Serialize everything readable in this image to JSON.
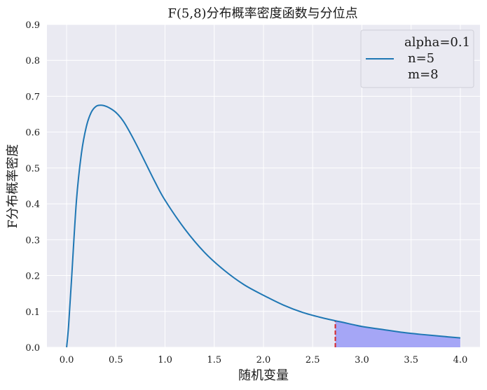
{
  "chart_data": {
    "type": "line",
    "title": "F(5,8)分布概率密度函数与分位点",
    "xlabel": "随机变量",
    "ylabel": "F分布概率密度",
    "xlim": [
      -0.2,
      4.2
    ],
    "ylim": [
      0,
      0.9
    ],
    "x_ticks": [
      "0.0",
      "0.5",
      "1.0",
      "1.5",
      "2.0",
      "2.5",
      "3.0",
      "3.5",
      "4.0"
    ],
    "y_ticks": [
      "0.0",
      "0.1",
      "0.2",
      "0.3",
      "0.4",
      "0.5",
      "0.6",
      "0.7",
      "0.8",
      "0.9"
    ],
    "grid": true,
    "background": "#eaeaf2",
    "legend": {
      "placement": "top-right",
      "lines": [
        "alpha=0.1",
        "n=5",
        "m=8"
      ]
    },
    "series": [
      {
        "color": "#1f77b4",
        "x": [
          0.0,
          0.02,
          0.05,
          0.1,
          0.15,
          0.2,
          0.25,
          0.3,
          0.35,
          0.4,
          0.45,
          0.5,
          0.55,
          0.6,
          0.7,
          0.8,
          0.9,
          1.0,
          1.2,
          1.4,
          1.6,
          1.8,
          2.0,
          2.2,
          2.4,
          2.6,
          2.73,
          2.8,
          3.0,
          3.2,
          3.4,
          3.6,
          3.8,
          4.0
        ],
        "y": [
          0.0,
          0.06,
          0.19,
          0.41,
          0.54,
          0.615,
          0.655,
          0.672,
          0.675,
          0.672,
          0.665,
          0.655,
          0.64,
          0.62,
          0.57,
          0.515,
          0.46,
          0.41,
          0.33,
          0.265,
          0.215,
          0.175,
          0.145,
          0.118,
          0.097,
          0.082,
          0.074,
          0.07,
          0.058,
          0.05,
          0.042,
          0.036,
          0.031,
          0.026
        ]
      }
    ],
    "quantile": {
      "x": 2.73,
      "line_color": "#d62728",
      "fill_color": "#a5a6f6"
    }
  }
}
